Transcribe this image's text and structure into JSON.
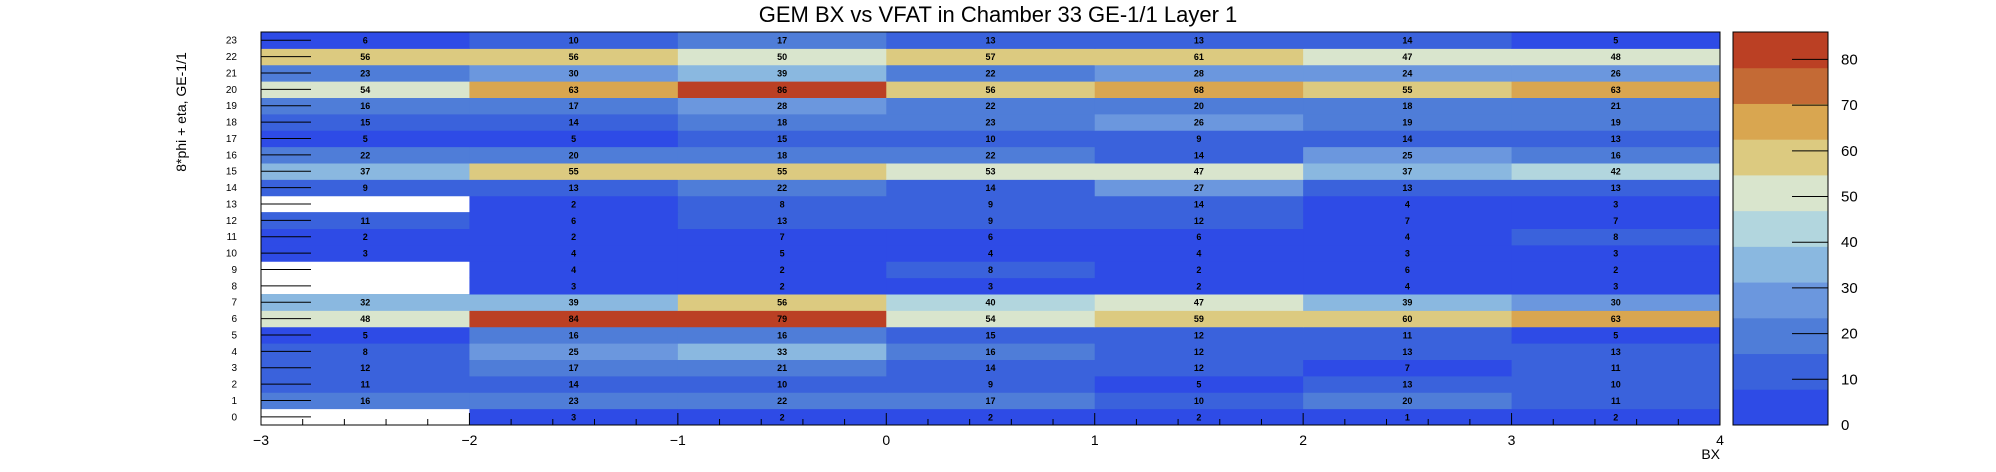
{
  "chart_data": {
    "type": "heatmap",
    "title": "GEM BX vs VFAT in Chamber 33 GE-1/1 Layer 1",
    "xlabel": "BX",
    "ylabel": "8*phi + eta, GE-1/1",
    "x_bin_edges": [
      -3,
      -2,
      -1,
      0,
      1,
      2,
      3,
      4
    ],
    "x_tick_labels": [
      "−3",
      "−2",
      "−1",
      "0",
      "1",
      "2",
      "3",
      "4"
    ],
    "y_tick_labels": [
      "0",
      "1",
      "2",
      "3",
      "4",
      "5",
      "6",
      "7",
      "8",
      "9",
      "10",
      "11",
      "12",
      "13",
      "14",
      "15",
      "16",
      "17",
      "18",
      "19",
      "20",
      "21",
      "22",
      "23"
    ],
    "colorbar": {
      "min": 0,
      "max": 86,
      "ticks": [
        0,
        10,
        20,
        30,
        40,
        50,
        60,
        70,
        80
      ],
      "colors": [
        "#2e4be6",
        "#3a62dc",
        "#4f7dd8",
        "#6b97de",
        "#8ab8e0",
        "#b2d6de",
        "#d9e5cd",
        "#dcca80",
        "#d9a650",
        "#c46a35",
        "#bb4024"
      ]
    },
    "values": [
      [
        null,
        3,
        2,
        2,
        2,
        1,
        2
      ],
      [
        16,
        23,
        22,
        17,
        10,
        20,
        11
      ],
      [
        11,
        14,
        10,
        9,
        5,
        13,
        10
      ],
      [
        12,
        17,
        21,
        14,
        12,
        7,
        11
      ],
      [
        8,
        25,
        33,
        16,
        12,
        13,
        13
      ],
      [
        5,
        16,
        16,
        15,
        12,
        11,
        5
      ],
      [
        48,
        84,
        79,
        54,
        59,
        60,
        63
      ],
      [
        32,
        39,
        56,
        40,
        47,
        39,
        30
      ],
      [
        null,
        3,
        2,
        3,
        2,
        4,
        3
      ],
      [
        null,
        4,
        2,
        8,
        2,
        6,
        2
      ],
      [
        3,
        4,
        5,
        4,
        4,
        3,
        3
      ],
      [
        2,
        2,
        7,
        6,
        6,
        4,
        8
      ],
      [
        11,
        6,
        13,
        9,
        12,
        7,
        7
      ],
      [
        null,
        2,
        8,
        9,
        14,
        4,
        3
      ],
      [
        9,
        13,
        22,
        14,
        27,
        13,
        13
      ],
      [
        37,
        55,
        55,
        53,
        47,
        37,
        42
      ],
      [
        22,
        20,
        18,
        22,
        14,
        25,
        16
      ],
      [
        5,
        5,
        15,
        10,
        9,
        14,
        13
      ],
      [
        15,
        14,
        18,
        23,
        26,
        19,
        19
      ],
      [
        16,
        17,
        28,
        22,
        20,
        18,
        21
      ],
      [
        54,
        63,
        86,
        56,
        68,
        55,
        63
      ],
      [
        23,
        30,
        39,
        22,
        28,
        24,
        26
      ],
      [
        56,
        56,
        50,
        57,
        61,
        47,
        48
      ],
      [
        6,
        10,
        17,
        13,
        13,
        14,
        5
      ]
    ]
  }
}
